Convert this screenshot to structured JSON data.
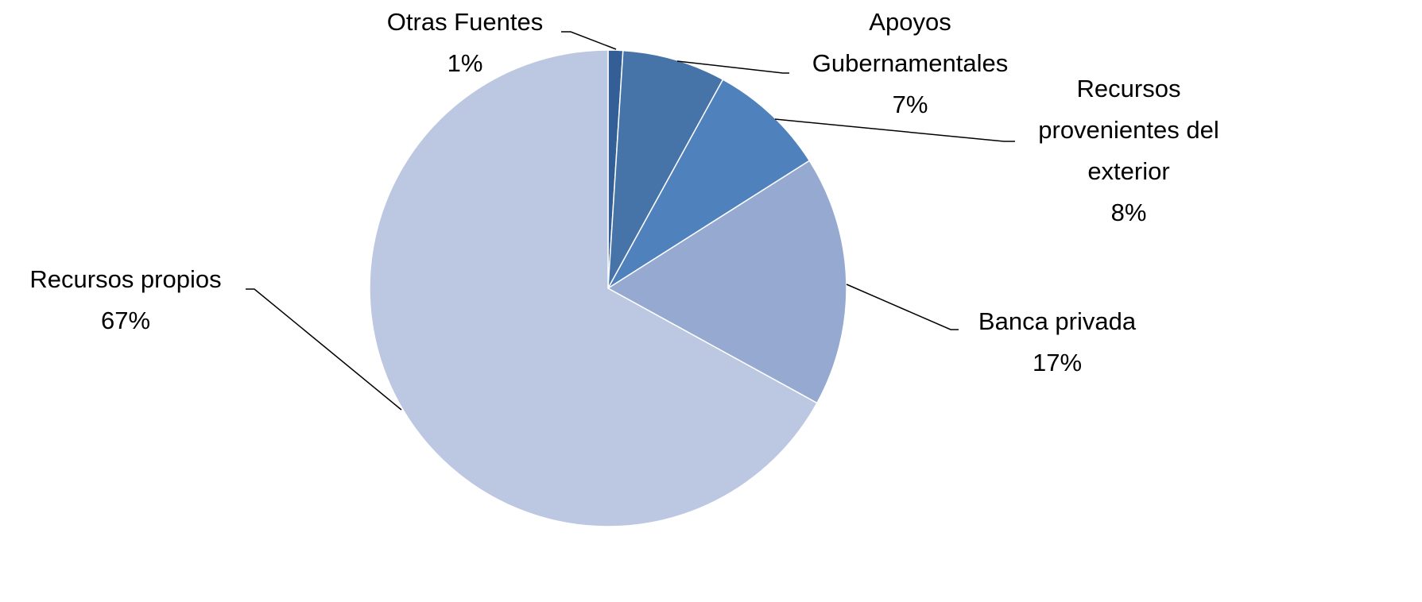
{
  "chart_data": {
    "type": "pie",
    "categories": [
      "Otras Fuentes",
      "Apoyos Gubernamentales",
      "Recursos provenientes del exterior",
      "Banca privada",
      "Recursos propios"
    ],
    "values": [
      1,
      7,
      8,
      17,
      67
    ],
    "value_labels": [
      "1%",
      "7%",
      "8%",
      "17%",
      "67%"
    ],
    "colors": [
      "#335f96",
      "#4673a8",
      "#4f81bd",
      "#95a9d1",
      "#bcc8e1"
    ]
  }
}
